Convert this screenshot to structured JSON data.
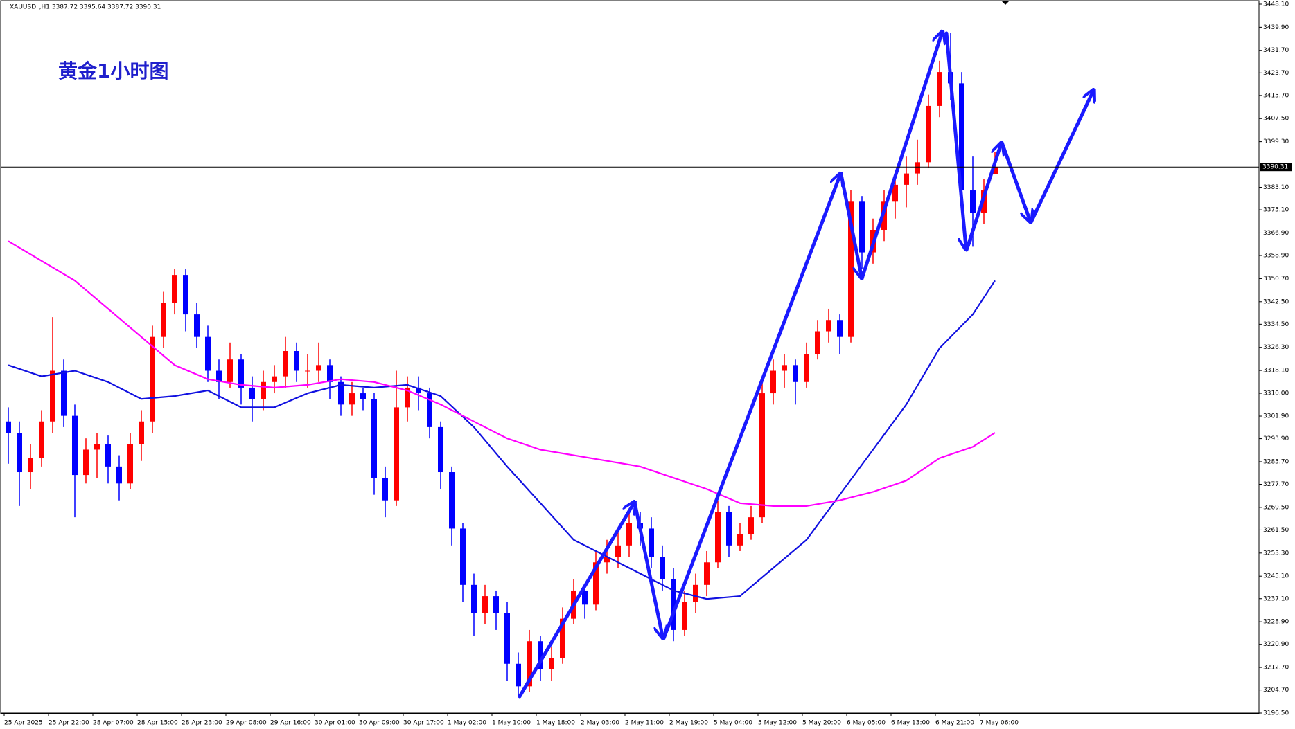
{
  "chart_data": {
    "type": "candlestick",
    "header": "XAUUSD_,H1  3387.72 3395.64 3387.72 3390.31",
    "title": "黄金1小时图",
    "categories": [
      "25 Apr 2025",
      null,
      null,
      null,
      "25 Apr 22:00",
      null,
      null,
      null,
      "28 Apr 07:00",
      null,
      null,
      null,
      "28 Apr 15:00",
      null,
      null,
      null,
      "28 Apr 23:00",
      null,
      null,
      null,
      "29 Apr 08:00",
      null,
      null,
      null,
      "29 Apr 16:00",
      null,
      null,
      null,
      "30 Apr 01:00",
      null,
      null,
      null,
      "30 Apr 09:00",
      null,
      null,
      null,
      "30 Apr 17:00",
      null,
      null,
      null,
      "1 May 02:00",
      null,
      null,
      null,
      "1 May 10:00",
      null,
      null,
      null,
      "1 May 18:00",
      null,
      null,
      null,
      "2 May 03:00",
      null,
      null,
      null,
      "2 May 11:00",
      null,
      null,
      null,
      "2 May 19:00",
      null,
      null,
      null,
      "5 May 04:00",
      null,
      null,
      null,
      "5 May 12:00",
      null,
      null,
      null,
      "5 May 20:00",
      null,
      null,
      null,
      "6 May 05:00",
      null,
      null,
      null,
      "6 May 13:00",
      null,
      null,
      null,
      "6 May 21:00",
      null,
      null,
      null,
      "7 May 06:00",
      null
    ],
    "candles": [
      [
        3300,
        3305,
        3285,
        3296
      ],
      [
        3296,
        3300,
        3270,
        3282
      ],
      [
        3282,
        3292,
        3276,
        3287
      ],
      [
        3287,
        3304,
        3284,
        3300
      ],
      [
        3300,
        3337,
        3296,
        3318
      ],
      [
        3318,
        3322,
        3298,
        3302
      ],
      [
        3302,
        3306,
        3266,
        3281
      ],
      [
        3281,
        3294,
        3278,
        3290
      ],
      [
        3290,
        3296,
        3280,
        3292
      ],
      [
        3292,
        3295,
        3278,
        3284
      ],
      [
        3284,
        3288,
        3272,
        3278
      ],
      [
        3278,
        3296,
        3276,
        3292
      ],
      [
        3292,
        3304,
        3286,
        3300
      ],
      [
        3300,
        3334,
        3296,
        3330
      ],
      [
        3330,
        3346,
        3326,
        3342
      ],
      [
        3342,
        3354,
        3338,
        3352
      ],
      [
        3352,
        3354,
        3332,
        3338
      ],
      [
        3338,
        3342,
        3326,
        3330
      ],
      [
        3330,
        3334,
        3314,
        3318
      ],
      [
        3318,
        3322,
        3308,
        3314
      ],
      [
        3314,
        3328,
        3312,
        3322
      ],
      [
        3322,
        3324,
        3306,
        3312
      ],
      [
        3312,
        3316,
        3300,
        3308
      ],
      [
        3308,
        3318,
        3304,
        3314
      ],
      [
        3314,
        3320,
        3310,
        3316
      ],
      [
        3316,
        3330,
        3312,
        3325
      ],
      [
        3325,
        3328,
        3314,
        3318
      ],
      [
        3318,
        3324,
        3312,
        3318
      ],
      [
        3318,
        3328,
        3314,
        3320
      ],
      [
        3320,
        3322,
        3308,
        3314
      ],
      [
        3314,
        3316,
        3302,
        3306
      ],
      [
        3306,
        3314,
        3302,
        3310
      ],
      [
        3310,
        3312,
        3304,
        3308
      ],
      [
        3308,
        3310,
        3274,
        3280
      ],
      [
        3280,
        3284,
        3266,
        3272
      ],
      [
        3272,
        3318,
        3270,
        3305
      ],
      [
        3305,
        3316,
        3300,
        3312
      ],
      [
        3312,
        3316,
        3304,
        3310
      ],
      [
        3310,
        3312,
        3294,
        3298
      ],
      [
        3298,
        3300,
        3276,
        3282
      ],
      [
        3282,
        3284,
        3256,
        3262
      ],
      [
        3262,
        3264,
        3236,
        3242
      ],
      [
        3242,
        3246,
        3224,
        3232
      ],
      [
        3232,
        3242,
        3228,
        3238
      ],
      [
        3238,
        3240,
        3226,
        3232
      ],
      [
        3232,
        3236,
        3208,
        3214
      ],
      [
        3214,
        3218,
        3202,
        3206
      ],
      [
        3206,
        3226,
        3204,
        3222
      ],
      [
        3222,
        3224,
        3208,
        3212
      ],
      [
        3212,
        3220,
        3208,
        3216
      ],
      [
        3216,
        3234,
        3214,
        3230
      ],
      [
        3230,
        3244,
        3228,
        3240
      ],
      [
        3240,
        3242,
        3230,
        3235
      ],
      [
        3235,
        3254,
        3233,
        3250
      ],
      [
        3250,
        3258,
        3246,
        3252
      ],
      [
        3252,
        3262,
        3248,
        3256
      ],
      [
        3256,
        3268,
        3252,
        3264
      ],
      [
        3264,
        3268,
        3256,
        3262
      ],
      [
        3262,
        3266,
        3248,
        3252
      ],
      [
        3252,
        3256,
        3240,
        3244
      ],
      [
        3244,
        3248,
        3222,
        3226
      ],
      [
        3226,
        3240,
        3224,
        3236
      ],
      [
        3236,
        3246,
        3232,
        3242
      ],
      [
        3242,
        3254,
        3238,
        3250
      ],
      [
        3250,
        3272,
        3248,
        3268
      ],
      [
        3268,
        3270,
        3252,
        3256
      ],
      [
        3256,
        3264,
        3254,
        3260
      ],
      [
        3260,
        3270,
        3258,
        3266
      ],
      [
        3266,
        3314,
        3264,
        3310
      ],
      [
        3310,
        3322,
        3306,
        3318
      ],
      [
        3318,
        3324,
        3312,
        3320
      ],
      [
        3320,
        3322,
        3306,
        3314
      ],
      [
        3314,
        3328,
        3312,
        3324
      ],
      [
        3324,
        3336,
        3322,
        3332
      ],
      [
        3332,
        3340,
        3328,
        3336
      ],
      [
        3336,
        3338,
        3324,
        3330
      ],
      [
        3330,
        3382,
        3328,
        3378
      ],
      [
        3378,
        3380,
        3354,
        3360
      ],
      [
        3360,
        3372,
        3356,
        3368
      ],
      [
        3368,
        3382,
        3364,
        3378
      ],
      [
        3378,
        3388,
        3372,
        3384
      ],
      [
        3384,
        3394,
        3376,
        3388
      ],
      [
        3388,
        3400,
        3384,
        3392
      ],
      [
        3392,
        3416,
        3390,
        3412
      ],
      [
        3412,
        3428,
        3408,
        3424
      ],
      [
        3424,
        3438,
        3414,
        3420
      ],
      [
        3420,
        3424,
        3376,
        3382
      ],
      [
        3382,
        3394,
        3362,
        3374
      ],
      [
        3374,
        3386,
        3370,
        3382
      ],
      [
        3387.72,
        3395.64,
        3387.72,
        3390.31
      ]
    ],
    "up_color": "#ff0000",
    "down_color": "#0000ff",
    "ma_lines": [
      {
        "color": "#1010e0",
        "x": [
          0,
          3,
          6,
          9,
          12,
          15,
          18,
          21,
          24,
          27,
          30,
          33,
          36,
          39,
          42,
          45,
          48,
          51,
          54,
          57,
          60,
          63,
          66,
          69,
          72,
          75,
          78,
          81,
          84,
          87,
          89
        ],
        "values": [
          3320,
          3316,
          3318,
          3314,
          3308,
          3309,
          3311,
          3305,
          3305,
          3310,
          3313,
          3312,
          3313,
          3309,
          3298,
          3284,
          3271,
          3258,
          3252,
          3246,
          3240,
          3237,
          3238,
          3248,
          3258,
          3274,
          3290,
          3306,
          3326,
          3338,
          3350
        ]
      },
      {
        "color": "#ff00ff",
        "x": [
          0,
          3,
          6,
          9,
          12,
          15,
          18,
          21,
          24,
          27,
          30,
          33,
          36,
          39,
          42,
          45,
          48,
          51,
          54,
          57,
          60,
          63,
          66,
          69,
          72,
          75,
          78,
          81,
          84,
          87,
          89
        ],
        "values": [
          3364,
          3357,
          3350,
          3340,
          3330,
          3320,
          3315,
          3313,
          3312,
          3313,
          3315,
          3314,
          3311,
          3306,
          3300,
          3294,
          3290,
          3288,
          3286,
          3284,
          3280,
          3276,
          3271,
          3270,
          3270,
          3272,
          3275,
          3279,
          3287,
          3291,
          3296
        ]
      }
    ],
    "current_price": 3390.31,
    "ylim": [
      3196.5,
      3448.1
    ],
    "yticks": [
      {
        "value": 3448.1,
        "label": "3448.10"
      },
      {
        "value": 3439.9,
        "label": "3439.90"
      },
      {
        "value": 3431.7,
        "label": "3431.70"
      },
      {
        "value": 3423.7,
        "label": "3423.70"
      },
      {
        "value": 3415.7,
        "label": "3415.70"
      },
      {
        "value": 3407.5,
        "label": "3407.50"
      },
      {
        "value": 3399.3,
        "label": "3399.30"
      },
      {
        "value": 3383.1,
        "label": "3383.10"
      },
      {
        "value": 3375.1,
        "label": "3375.10"
      },
      {
        "value": 3366.9,
        "label": "3366.90"
      },
      {
        "value": 3358.9,
        "label": "3358.90"
      },
      {
        "value": 3350.7,
        "label": "3350.70"
      },
      {
        "value": 3342.5,
        "label": "3342.50"
      },
      {
        "value": 3334.5,
        "label": "3334.50"
      },
      {
        "value": 3326.3,
        "label": "3326.30"
      },
      {
        "value": 3318.1,
        "label": "3318.10"
      },
      {
        "value": 3310,
        "label": "3310.00"
      },
      {
        "value": 3301.9,
        "label": "3301.90"
      },
      {
        "value": 3293.9,
        "label": "3293.90"
      },
      {
        "value": 3285.7,
        "label": "3285.70"
      },
      {
        "value": 3277.7,
        "label": "3277.70"
      },
      {
        "value": 3269.5,
        "label": "3269.50"
      },
      {
        "value": 3261.5,
        "label": "3261.50"
      },
      {
        "value": 3253.3,
        "label": "3253.30"
      },
      {
        "value": 3245.1,
        "label": "3245.10"
      },
      {
        "value": 3237.1,
        "label": "3237.10"
      },
      {
        "value": 3228.9,
        "label": "3228.90"
      },
      {
        "value": 3220.9,
        "label": "3220.90"
      },
      {
        "value": 3212.7,
        "label": "3212.70"
      },
      {
        "value": 3204.7,
        "label": "3204.70"
      },
      {
        "value": 3196.5,
        "label": "3196.50"
      }
    ]
  }
}
